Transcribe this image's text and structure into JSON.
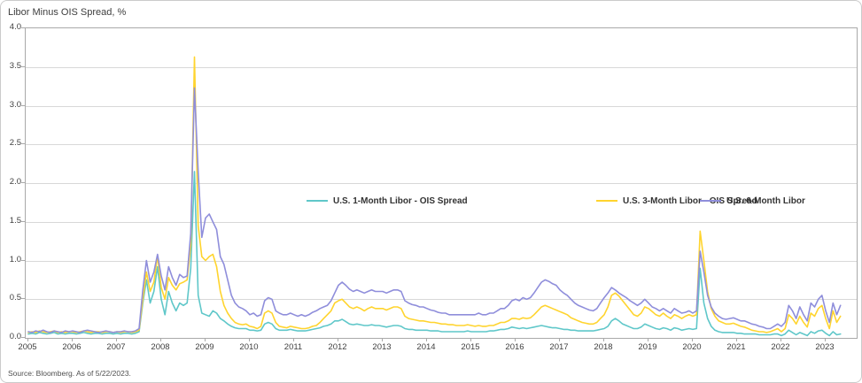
{
  "card": {
    "title": "Libor Minus OIS Spread, %",
    "source": "Source: Bloomberg. As of 5/22/2023."
  },
  "chart_data": {
    "type": "line",
    "title": "Libor Minus OIS Spread, %",
    "ylabel": "%",
    "ylim": [
      0,
      4
    ],
    "grid": "horizontal",
    "legend_position": "inside-top-center",
    "x_unit": "monthly, Jan 2005 - May 2023",
    "y_ticks": [
      "0.0",
      "0.5",
      "1.0",
      "1.5",
      "2.0",
      "2.5",
      "3.0",
      "3.5",
      "4.0"
    ],
    "x_ticks": [
      "2005",
      "2006",
      "2007",
      "2008",
      "2009",
      "2010",
      "2011",
      "2012",
      "2013",
      "2014",
      "2015",
      "2016",
      "2017",
      "2018",
      "2019",
      "2020",
      "2021",
      "2022",
      "2023"
    ],
    "series": [
      {
        "name": "U.S. 1-Month Libor - OIS Spread",
        "color": "#5FC7C9",
        "values": [
          0.05,
          0.06,
          0.05,
          0.07,
          0.06,
          0.05,
          0.06,
          0.07,
          0.05,
          0.06,
          0.05,
          0.06,
          0.06,
          0.05,
          0.06,
          0.07,
          0.06,
          0.05,
          0.06,
          0.06,
          0.05,
          0.06,
          0.06,
          0.05,
          0.06,
          0.05,
          0.06,
          0.06,
          0.05,
          0.06,
          0.08,
          0.45,
          0.75,
          0.45,
          0.6,
          0.92,
          0.5,
          0.3,
          0.6,
          0.45,
          0.35,
          0.45,
          0.42,
          0.45,
          0.9,
          2.15,
          0.55,
          0.32,
          0.3,
          0.28,
          0.35,
          0.32,
          0.25,
          0.22,
          0.18,
          0.15,
          0.13,
          0.12,
          0.12,
          0.12,
          0.1,
          0.1,
          0.09,
          0.1,
          0.18,
          0.2,
          0.18,
          0.12,
          0.1,
          0.1,
          0.1,
          0.11,
          0.1,
          0.09,
          0.09,
          0.09,
          0.1,
          0.11,
          0.12,
          0.13,
          0.15,
          0.16,
          0.18,
          0.22,
          0.22,
          0.24,
          0.21,
          0.18,
          0.17,
          0.18,
          0.17,
          0.16,
          0.16,
          0.17,
          0.16,
          0.16,
          0.15,
          0.14,
          0.15,
          0.16,
          0.16,
          0.15,
          0.12,
          0.11,
          0.11,
          0.1,
          0.1,
          0.1,
          0.1,
          0.09,
          0.09,
          0.09,
          0.08,
          0.08,
          0.08,
          0.08,
          0.08,
          0.08,
          0.08,
          0.09,
          0.08,
          0.08,
          0.08,
          0.08,
          0.08,
          0.09,
          0.09,
          0.1,
          0.11,
          0.11,
          0.12,
          0.14,
          0.13,
          0.12,
          0.13,
          0.12,
          0.13,
          0.14,
          0.15,
          0.16,
          0.15,
          0.14,
          0.13,
          0.13,
          0.12,
          0.11,
          0.11,
          0.1,
          0.1,
          0.09,
          0.09,
          0.09,
          0.09,
          0.09,
          0.1,
          0.11,
          0.12,
          0.15,
          0.22,
          0.25,
          0.22,
          0.18,
          0.16,
          0.14,
          0.12,
          0.12,
          0.14,
          0.18,
          0.16,
          0.14,
          0.12,
          0.11,
          0.13,
          0.12,
          0.1,
          0.13,
          0.12,
          0.1,
          0.11,
          0.12,
          0.11,
          0.12,
          0.9,
          0.45,
          0.25,
          0.15,
          0.1,
          0.08,
          0.07,
          0.07,
          0.07,
          0.07,
          0.06,
          0.06,
          0.05,
          0.05,
          0.05,
          0.05,
          0.04,
          0.04,
          0.04,
          0.04,
          0.05,
          0.05,
          0.03,
          0.05,
          0.1,
          0.07,
          0.04,
          0.07,
          0.05,
          0.03,
          0.08,
          0.06,
          0.09,
          0.1,
          0.06,
          0.03,
          0.08,
          0.04,
          0.05
        ]
      },
      {
        "name": "U.S. 3-Month Libor - OIS Spread",
        "color": "#FFD42E",
        "values": [
          0.07,
          0.08,
          0.07,
          0.09,
          0.08,
          0.07,
          0.08,
          0.09,
          0.07,
          0.08,
          0.07,
          0.08,
          0.08,
          0.07,
          0.08,
          0.09,
          0.08,
          0.07,
          0.08,
          0.08,
          0.07,
          0.08,
          0.08,
          0.07,
          0.08,
          0.07,
          0.08,
          0.08,
          0.07,
          0.08,
          0.1,
          0.5,
          0.85,
          0.6,
          0.72,
          1.06,
          0.65,
          0.5,
          0.78,
          0.68,
          0.62,
          0.7,
          0.72,
          0.75,
          1.2,
          3.63,
          1.45,
          1.05,
          1.0,
          1.05,
          1.08,
          0.92,
          0.6,
          0.42,
          0.32,
          0.25,
          0.2,
          0.18,
          0.17,
          0.18,
          0.15,
          0.14,
          0.12,
          0.15,
          0.32,
          0.35,
          0.32,
          0.2,
          0.15,
          0.14,
          0.13,
          0.15,
          0.14,
          0.13,
          0.12,
          0.12,
          0.13,
          0.15,
          0.16,
          0.2,
          0.25,
          0.3,
          0.35,
          0.45,
          0.48,
          0.5,
          0.45,
          0.4,
          0.38,
          0.4,
          0.38,
          0.35,
          0.38,
          0.4,
          0.38,
          0.38,
          0.38,
          0.36,
          0.38,
          0.4,
          0.4,
          0.38,
          0.28,
          0.25,
          0.24,
          0.23,
          0.22,
          0.22,
          0.21,
          0.2,
          0.2,
          0.19,
          0.18,
          0.18,
          0.17,
          0.17,
          0.16,
          0.16,
          0.16,
          0.17,
          0.16,
          0.15,
          0.16,
          0.15,
          0.15,
          0.16,
          0.16,
          0.18,
          0.2,
          0.2,
          0.22,
          0.25,
          0.25,
          0.24,
          0.26,
          0.25,
          0.26,
          0.3,
          0.35,
          0.4,
          0.42,
          0.4,
          0.38,
          0.36,
          0.34,
          0.32,
          0.3,
          0.26,
          0.24,
          0.22,
          0.2,
          0.19,
          0.18,
          0.18,
          0.2,
          0.25,
          0.3,
          0.4,
          0.55,
          0.58,
          0.54,
          0.48,
          0.42,
          0.36,
          0.3,
          0.28,
          0.32,
          0.4,
          0.38,
          0.34,
          0.3,
          0.28,
          0.32,
          0.28,
          0.25,
          0.3,
          0.28,
          0.25,
          0.28,
          0.3,
          0.28,
          0.3,
          1.38,
          1.0,
          0.6,
          0.38,
          0.28,
          0.22,
          0.2,
          0.18,
          0.18,
          0.19,
          0.17,
          0.15,
          0.14,
          0.12,
          0.1,
          0.09,
          0.08,
          0.08,
          0.07,
          0.08,
          0.1,
          0.12,
          0.08,
          0.12,
          0.3,
          0.25,
          0.18,
          0.28,
          0.2,
          0.14,
          0.32,
          0.28,
          0.38,
          0.42,
          0.25,
          0.12,
          0.35,
          0.2,
          0.28
        ]
      },
      {
        "name": "U.S. 6-Month Libor",
        "color": "#8F8EDB",
        "values": [
          0.08,
          0.07,
          0.09,
          0.08,
          0.1,
          0.08,
          0.07,
          0.09,
          0.08,
          0.07,
          0.09,
          0.08,
          0.09,
          0.08,
          0.07,
          0.09,
          0.1,
          0.09,
          0.08,
          0.07,
          0.08,
          0.09,
          0.08,
          0.07,
          0.08,
          0.08,
          0.09,
          0.08,
          0.08,
          0.09,
          0.12,
          0.62,
          1.0,
          0.72,
          0.85,
          1.08,
          0.8,
          0.62,
          0.92,
          0.78,
          0.68,
          0.82,
          0.78,
          0.8,
          1.35,
          3.23,
          2.15,
          1.3,
          1.55,
          1.6,
          1.5,
          1.4,
          1.05,
          0.95,
          0.75,
          0.55,
          0.45,
          0.4,
          0.38,
          0.35,
          0.3,
          0.32,
          0.28,
          0.3,
          0.48,
          0.52,
          0.5,
          0.35,
          0.32,
          0.3,
          0.3,
          0.32,
          0.3,
          0.28,
          0.3,
          0.28,
          0.3,
          0.33,
          0.35,
          0.38,
          0.4,
          0.42,
          0.48,
          0.58,
          0.68,
          0.72,
          0.68,
          0.63,
          0.6,
          0.62,
          0.6,
          0.58,
          0.6,
          0.62,
          0.6,
          0.6,
          0.6,
          0.58,
          0.6,
          0.62,
          0.62,
          0.6,
          0.48,
          0.45,
          0.43,
          0.42,
          0.4,
          0.4,
          0.38,
          0.36,
          0.35,
          0.33,
          0.32,
          0.32,
          0.3,
          0.3,
          0.3,
          0.3,
          0.3,
          0.3,
          0.3,
          0.3,
          0.32,
          0.3,
          0.3,
          0.32,
          0.32,
          0.35,
          0.38,
          0.38,
          0.42,
          0.48,
          0.5,
          0.48,
          0.52,
          0.5,
          0.52,
          0.58,
          0.65,
          0.72,
          0.75,
          0.73,
          0.7,
          0.68,
          0.62,
          0.58,
          0.55,
          0.5,
          0.45,
          0.42,
          0.4,
          0.38,
          0.36,
          0.35,
          0.38,
          0.45,
          0.52,
          0.58,
          0.65,
          0.62,
          0.58,
          0.55,
          0.52,
          0.48,
          0.45,
          0.42,
          0.45,
          0.5,
          0.45,
          0.4,
          0.38,
          0.35,
          0.38,
          0.35,
          0.32,
          0.38,
          0.35,
          0.32,
          0.33,
          0.35,
          0.32,
          0.35,
          1.12,
          0.85,
          0.55,
          0.4,
          0.32,
          0.28,
          0.25,
          0.24,
          0.25,
          0.26,
          0.24,
          0.22,
          0.22,
          0.2,
          0.18,
          0.17,
          0.15,
          0.14,
          0.12,
          0.12,
          0.15,
          0.18,
          0.15,
          0.2,
          0.42,
          0.35,
          0.25,
          0.4,
          0.3,
          0.22,
          0.45,
          0.4,
          0.5,
          0.55,
          0.35,
          0.2,
          0.45,
          0.3,
          0.42
        ]
      }
    ]
  }
}
